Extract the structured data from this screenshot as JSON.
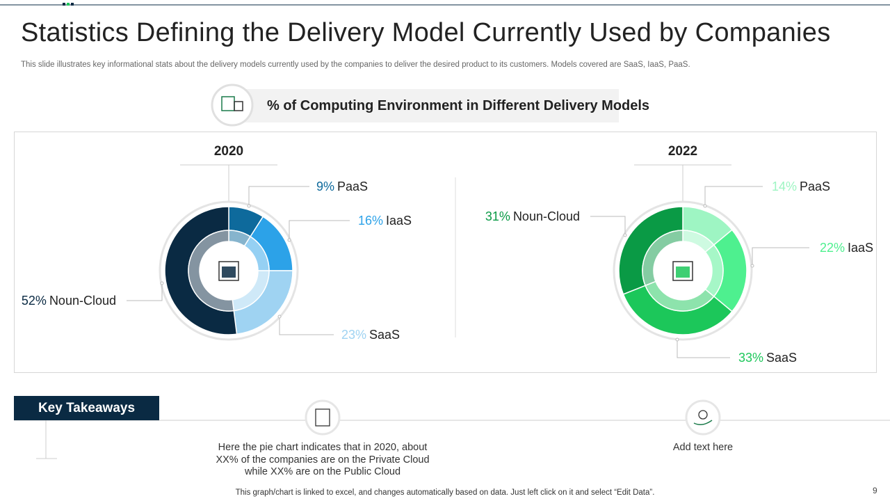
{
  "title": "Statistics Defining the Delivery Model Currently Used by Companies",
  "subtitle": "This slide illustrates key informational stats about the delivery models currently used by the companies to deliver the desired product to its customers. Models covered are SaaS, IaaS, PaaS.",
  "chart_heading": "% of Computing Environment in Different Delivery Models",
  "chart_data": [
    {
      "type": "pie",
      "title": "2020",
      "categories": [
        "PaaS",
        "IaaS",
        "SaaS",
        "Noun-Cloud"
      ],
      "values": [
        9,
        16,
        23,
        52
      ],
      "value_labels": [
        "9%",
        "16%",
        "23%",
        "52%"
      ],
      "colors": [
        "#0e6a9c",
        "#2ca2e8",
        "#9fd3f2",
        "#0a2a43"
      ]
    },
    {
      "type": "pie",
      "title": "2022",
      "categories": [
        "PaaS",
        "IaaS",
        "SaaS",
        "Noun-Cloud"
      ],
      "values": [
        14,
        22,
        33,
        31
      ],
      "value_labels": [
        "14%",
        "22%",
        "33%",
        "31%"
      ],
      "colors": [
        "#9ef5c3",
        "#4ef08f",
        "#1cc75a",
        "#0a9a45"
      ]
    }
  ],
  "takeaways": {
    "heading": "Key Takeaways",
    "items": [
      "Here the pie chart indicates that in 2020, about XX% of the companies are on the Private Cloud while XX% are on the Public Cloud",
      "Add text here"
    ]
  },
  "footnote": "This graph/chart is linked to excel, and changes automatically based on data. Just left click on it and select “Edit Data”.",
  "page_number": "9"
}
